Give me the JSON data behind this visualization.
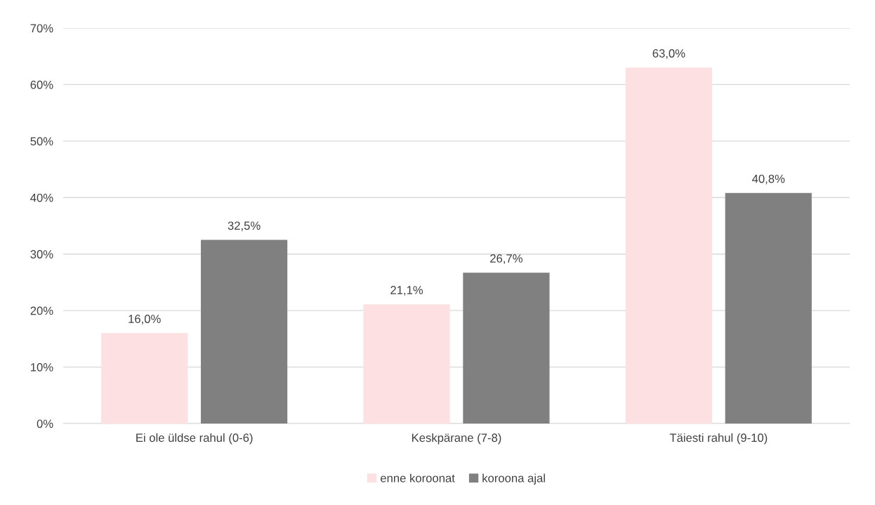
{
  "chart_data": {
    "type": "bar",
    "categories": [
      "Ei ole üldse rahul (0-6)",
      "Keskpärane (7-8)",
      "Täiesti rahul (9-10)"
    ],
    "series": [
      {
        "name": "enne koroonat",
        "color": "#fde0e1",
        "values": [
          16.0,
          21.1,
          63.0
        ],
        "value_labels": [
          "16,0%",
          "21,1%",
          "63,0%"
        ]
      },
      {
        "name": "koroona ajal",
        "color": "#808080",
        "values": [
          32.5,
          26.7,
          40.8
        ],
        "value_labels": [
          "32,5%",
          "26,7%",
          "40,8%"
        ]
      }
    ],
    "ylim": [
      0,
      70
    ],
    "yticks": [
      {
        "value": 0,
        "label": "0%"
      },
      {
        "value": 10,
        "label": "10%"
      },
      {
        "value": 20,
        "label": "20%"
      },
      {
        "value": 30,
        "label": "30%"
      },
      {
        "value": 40,
        "label": "40%"
      },
      {
        "value": 50,
        "label": "50%"
      },
      {
        "value": 60,
        "label": "60%"
      },
      {
        "value": 70,
        "label": "70%"
      }
    ],
    "grid": "y",
    "legend": "bottom"
  }
}
